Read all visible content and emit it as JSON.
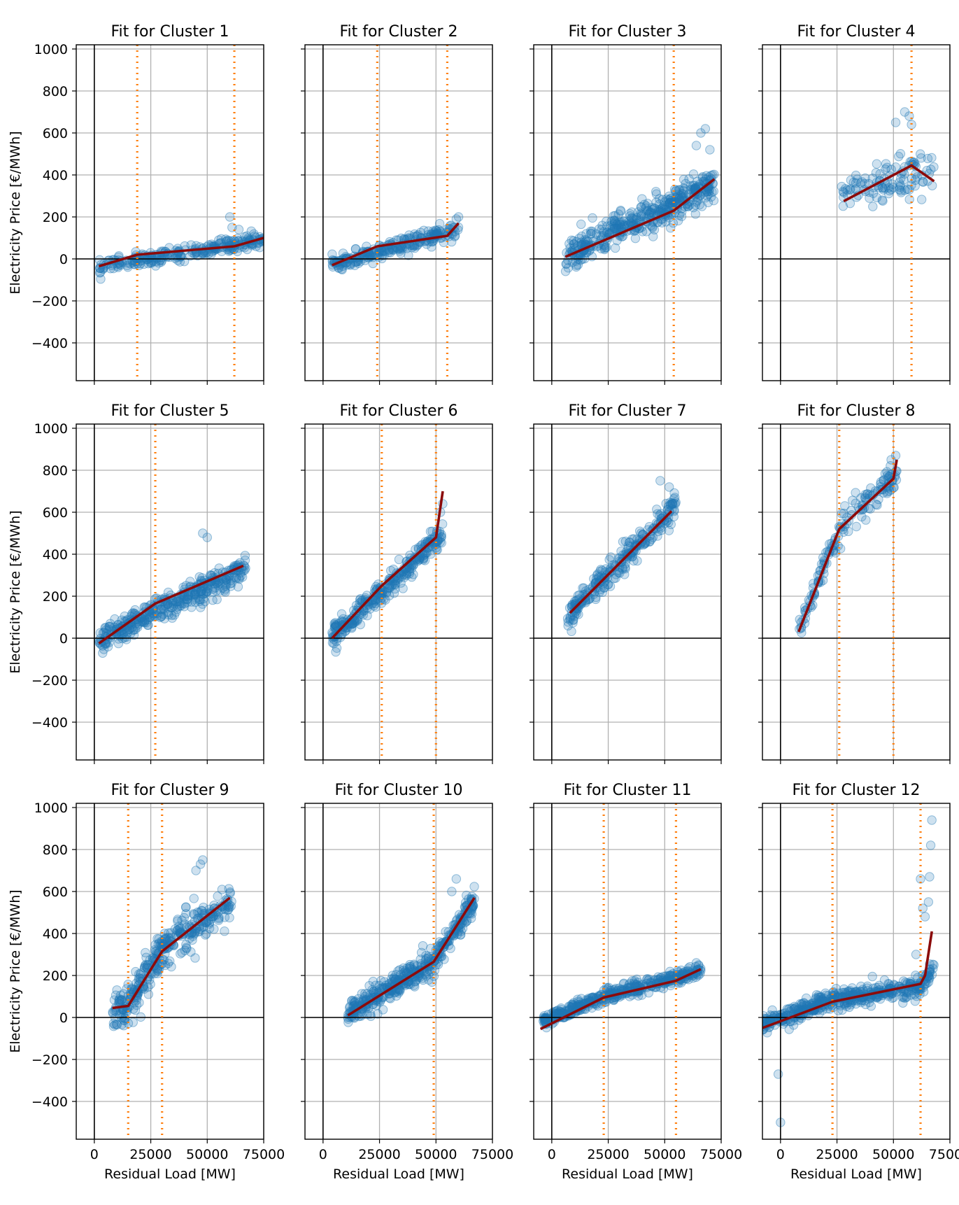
{
  "figure": {
    "ylabel": "Electricity Price [€/MWh]",
    "xlabel": "Residual Load [MW]"
  },
  "chart_data": [
    {
      "type": "scatter",
      "title": "Fit for Cluster 1",
      "xlabel": "",
      "ylabel": "Electricity Price [€/MWh]",
      "xlim": [
        -8000,
        75000
      ],
      "ylim": [
        -580,
        1020
      ],
      "xticks": [
        "0",
        "25000",
        "50000",
        "75000"
      ],
      "yticks": [
        "−400",
        "−200",
        "0",
        "200",
        "400",
        "600",
        "800",
        "1000"
      ],
      "breakpoints": [
        19000,
        62000
      ],
      "fit": {
        "x": [
          2000,
          19000,
          62000,
          75000
        ],
        "y": [
          -35,
          20,
          60,
          100
        ]
      },
      "scatter": {
        "x_range": [
          2000,
          75000
        ],
        "center_line": {
          "x": [
            2000,
            75000
          ],
          "y": [
            -40,
            95
          ]
        },
        "spread": 30,
        "count": 260,
        "outliers": {
          "x": [
            60000,
            61000,
            64000
          ],
          "y": [
            200,
            150,
            140
          ]
        }
      }
    },
    {
      "type": "scatter",
      "title": "Fit for Cluster 2",
      "xlabel": "",
      "ylabel": "",
      "xlim": [
        -8000,
        75000
      ],
      "ylim": [
        -580,
        1020
      ],
      "xticks": [
        "0",
        "25000",
        "50000",
        "75000"
      ],
      "yticks": [],
      "breakpoints": [
        24000,
        55000
      ],
      "fit": {
        "x": [
          4000,
          24000,
          55000,
          60000
        ],
        "y": [
          -30,
          60,
          110,
          170
        ]
      },
      "scatter": {
        "x_range": [
          4000,
          60000
        ],
        "center_line": {
          "x": [
            4000,
            60000
          ],
          "y": [
            -30,
            140
          ]
        },
        "spread": 35,
        "count": 240,
        "outliers": {
          "x": [
            59000,
            60000
          ],
          "y": [
            190,
            200
          ]
        }
      }
    },
    {
      "type": "scatter",
      "title": "Fit for Cluster 3",
      "xlabel": "",
      "ylabel": "",
      "xlim": [
        -8000,
        75000
      ],
      "ylim": [
        -580,
        1020
      ],
      "xticks": [
        "0",
        "25000",
        "50000",
        "75000"
      ],
      "yticks": [],
      "breakpoints": [
        54000
      ],
      "fit": {
        "x": [
          6000,
          54000,
          72000
        ],
        "y": [
          10,
          230,
          380
        ]
      },
      "scatter": {
        "x_range": [
          6000,
          72000
        ],
        "center_line": {
          "x": [
            6000,
            72000
          ],
          "y": [
            10,
            360
          ]
        },
        "spread": 70,
        "count": 420,
        "outliers": {
          "x": [
            68000,
            66000,
            64000,
            70000
          ],
          "y": [
            620,
            600,
            540,
            520
          ]
        }
      }
    },
    {
      "type": "scatter",
      "title": "Fit for Cluster 4",
      "xlabel": "",
      "ylabel": "",
      "xlim": [
        -8000,
        75000
      ],
      "ylim": [
        -580,
        1020
      ],
      "xticks": [
        "0",
        "25000",
        "50000",
        "75000"
      ],
      "yticks": [],
      "breakpoints": [
        58000
      ],
      "fit": {
        "x": [
          28000,
          58000,
          68000
        ],
        "y": [
          275,
          445,
          370
        ]
      },
      "scatter": {
        "x_range": [
          27000,
          68000
        ],
        "center_line": {
          "x": [
            27000,
            68000
          ],
          "y": [
            300,
            430
          ]
        },
        "spread": 90,
        "count": 110,
        "outliers": {
          "x": [
            55000,
            57000,
            51000,
            58000
          ],
          "y": [
            700,
            680,
            650,
            640
          ]
        }
      }
    },
    {
      "type": "scatter",
      "title": "Fit for Cluster 5",
      "xlabel": "",
      "ylabel": "Electricity Price [€/MWh]",
      "xlim": [
        -8000,
        75000
      ],
      "ylim": [
        -580,
        1020
      ],
      "xticks": [
        "0",
        "25000",
        "50000",
        "75000"
      ],
      "yticks": [
        "−400",
        "−200",
        "0",
        "200",
        "400",
        "600",
        "800",
        "1000"
      ],
      "breakpoints": [
        27000
      ],
      "fit": {
        "x": [
          2000,
          27000,
          66000
        ],
        "y": [
          -25,
          165,
          345
        ]
      },
      "scatter": {
        "x_range": [
          2000,
          67000
        ],
        "center_line": {
          "x": [
            2000,
            67000
          ],
          "y": [
            -10,
            330
          ]
        },
        "spread": 55,
        "count": 380,
        "outliers": {
          "x": [
            48000,
            50000
          ],
          "y": [
            500,
            480
          ]
        }
      }
    },
    {
      "type": "scatter",
      "title": "Fit for Cluster 6",
      "xlabel": "",
      "ylabel": "",
      "xlim": [
        -8000,
        75000
      ],
      "ylim": [
        -580,
        1020
      ],
      "xticks": [
        "0",
        "25000",
        "50000",
        "75000"
      ],
      "yticks": [],
      "breakpoints": [
        26000,
        50000
      ],
      "fit": {
        "x": [
          4000,
          26000,
          50000,
          53000
        ],
        "y": [
          0,
          250,
          480,
          700
        ]
      },
      "scatter": {
        "x_range": [
          4000,
          53000
        ],
        "center_line": {
          "x": [
            4000,
            53000
          ],
          "y": [
            10,
            490
          ]
        },
        "spread": 50,
        "count": 300,
        "outliers": {
          "x": [
            52000,
            53000
          ],
          "y": [
            600,
            640
          ]
        }
      }
    },
    {
      "type": "scatter",
      "title": "Fit for Cluster 7",
      "xlabel": "",
      "ylabel": "",
      "xlim": [
        -8000,
        75000
      ],
      "ylim": [
        -580,
        1020
      ],
      "xticks": [
        "0",
        "25000",
        "50000",
        "75000"
      ],
      "yticks": [],
      "breakpoints": [],
      "fit": {
        "x": [
          8000,
          53000
        ],
        "y": [
          120,
          605
        ]
      },
      "scatter": {
        "x_range": [
          7000,
          55000
        ],
        "center_line": {
          "x": [
            7000,
            55000
          ],
          "y": [
            100,
            630
          ]
        },
        "spread": 65,
        "count": 260,
        "outliers": {
          "x": [
            48000,
            52000
          ],
          "y": [
            750,
            720
          ]
        }
      }
    },
    {
      "type": "scatter",
      "title": "Fit for Cluster 8",
      "xlabel": "",
      "ylabel": "",
      "xlim": [
        -8000,
        75000
      ],
      "ylim": [
        -580,
        1020
      ],
      "xticks": [
        "0",
        "25000",
        "50000",
        "75000"
      ],
      "yticks": [],
      "breakpoints": [
        26000,
        50000
      ],
      "fit": {
        "x": [
          8000,
          26000,
          50000,
          51500
        ],
        "y": [
          30,
          520,
          760,
          850
        ]
      },
      "scatter": {
        "x_range": [
          8000,
          52000
        ],
        "center_line": {
          "x": [
            8000,
            26000,
            52000
          ],
          "y": [
            30,
            520,
            770
          ]
        },
        "spread": 60,
        "count": 150,
        "outliers": {
          "x": [
            51000,
            49000
          ],
          "y": [
            870,
            850
          ]
        }
      }
    },
    {
      "type": "scatter",
      "title": "Fit for Cluster 9",
      "xlabel": "Residual Load [MW]",
      "ylabel": "Electricity Price [€/MWh]",
      "xlim": [
        -8000,
        75000
      ],
      "ylim": [
        -580,
        1020
      ],
      "xticks": [
        "0",
        "25000",
        "50000",
        "75000"
      ],
      "yticks": [
        "−400",
        "−200",
        "0",
        "200",
        "400",
        "600",
        "800",
        "1000"
      ],
      "breakpoints": [
        15000,
        30000
      ],
      "fit": {
        "x": [
          8000,
          15000,
          30000,
          60000
        ],
        "y": [
          45,
          55,
          315,
          570
        ]
      },
      "scatter": {
        "x_range": [
          8000,
          61000
        ],
        "center_line": {
          "x": [
            8000,
            15000,
            30000,
            61000
          ],
          "y": [
            45,
            60,
            330,
            560
          ]
        },
        "spread": 85,
        "count": 340,
        "outliers": {
          "x": [
            48000,
            47000,
            45000
          ],
          "y": [
            750,
            730,
            700
          ]
        }
      }
    },
    {
      "type": "scatter",
      "title": "Fit for Cluster 10",
      "xlabel": "Residual Load [MW]",
      "ylabel": "",
      "xlim": [
        -8000,
        75000
      ],
      "ylim": [
        -580,
        1020
      ],
      "xticks": [
        "0",
        "25000",
        "50000",
        "75000"
      ],
      "yticks": [],
      "breakpoints": [
        49000
      ],
      "fit": {
        "x": [
          11000,
          49000,
          67000
        ],
        "y": [
          10,
          265,
          570
        ]
      },
      "scatter": {
        "x_range": [
          11000,
          67000
        ],
        "center_line": {
          "x": [
            11000,
            49000,
            67000
          ],
          "y": [
            15,
            265,
            560
          ]
        },
        "spread": 55,
        "count": 420,
        "outliers": {
          "x": [
            59000,
            57000
          ],
          "y": [
            660,
            600
          ]
        }
      }
    },
    {
      "type": "scatter",
      "title": "Fit for Cluster 11",
      "xlabel": "Residual Load [MW]",
      "ylabel": "",
      "xlim": [
        -8000,
        75000
      ],
      "ylim": [
        -580,
        1020
      ],
      "xticks": [
        "0",
        "25000",
        "50000",
        "75000"
      ],
      "yticks": [],
      "breakpoints": [
        23000,
        55000
      ],
      "fit": {
        "x": [
          -5000,
          23000,
          55000,
          66000
        ],
        "y": [
          -55,
          95,
          175,
          230
        ]
      },
      "scatter": {
        "x_range": [
          -4000,
          66000
        ],
        "center_line": {
          "x": [
            -4000,
            23000,
            66000
          ],
          "y": [
            -20,
            100,
            220
          ]
        },
        "spread": 30,
        "count": 420,
        "outliers": {
          "x": [
            64000,
            65000
          ],
          "y": [
            260,
            250
          ]
        }
      }
    },
    {
      "type": "scatter",
      "title": "Fit for Cluster 12",
      "xlabel": "Residual Load [MW]",
      "ylabel": "",
      "xlim": [
        -8000,
        75000
      ],
      "ylim": [
        -580,
        1020
      ],
      "xticks": [
        "0",
        "25000",
        "50000",
        "75000"
      ],
      "yticks": [],
      "breakpoints": [
        23000,
        62000
      ],
      "fit": {
        "x": [
          -8000,
          23000,
          62000,
          64000,
          67000
        ],
        "y": [
          -50,
          75,
          160,
          200,
          410
        ]
      },
      "scatter": {
        "x_range": [
          -8000,
          68000
        ],
        "center_line": {
          "x": [
            -8000,
            23000,
            62000,
            68000
          ],
          "y": [
            -30,
            80,
            150,
            250
          ]
        },
        "spread": 40,
        "count": 480,
        "outliers": {
          "x": [
            67000,
            66500,
            66000,
            65500,
            62000,
            63000,
            -1000,
            0,
            60000,
            64000
          ],
          "y": [
            940,
            820,
            670,
            550,
            660,
            520,
            -270,
            -500,
            300,
            480
          ]
        }
      }
    }
  ]
}
